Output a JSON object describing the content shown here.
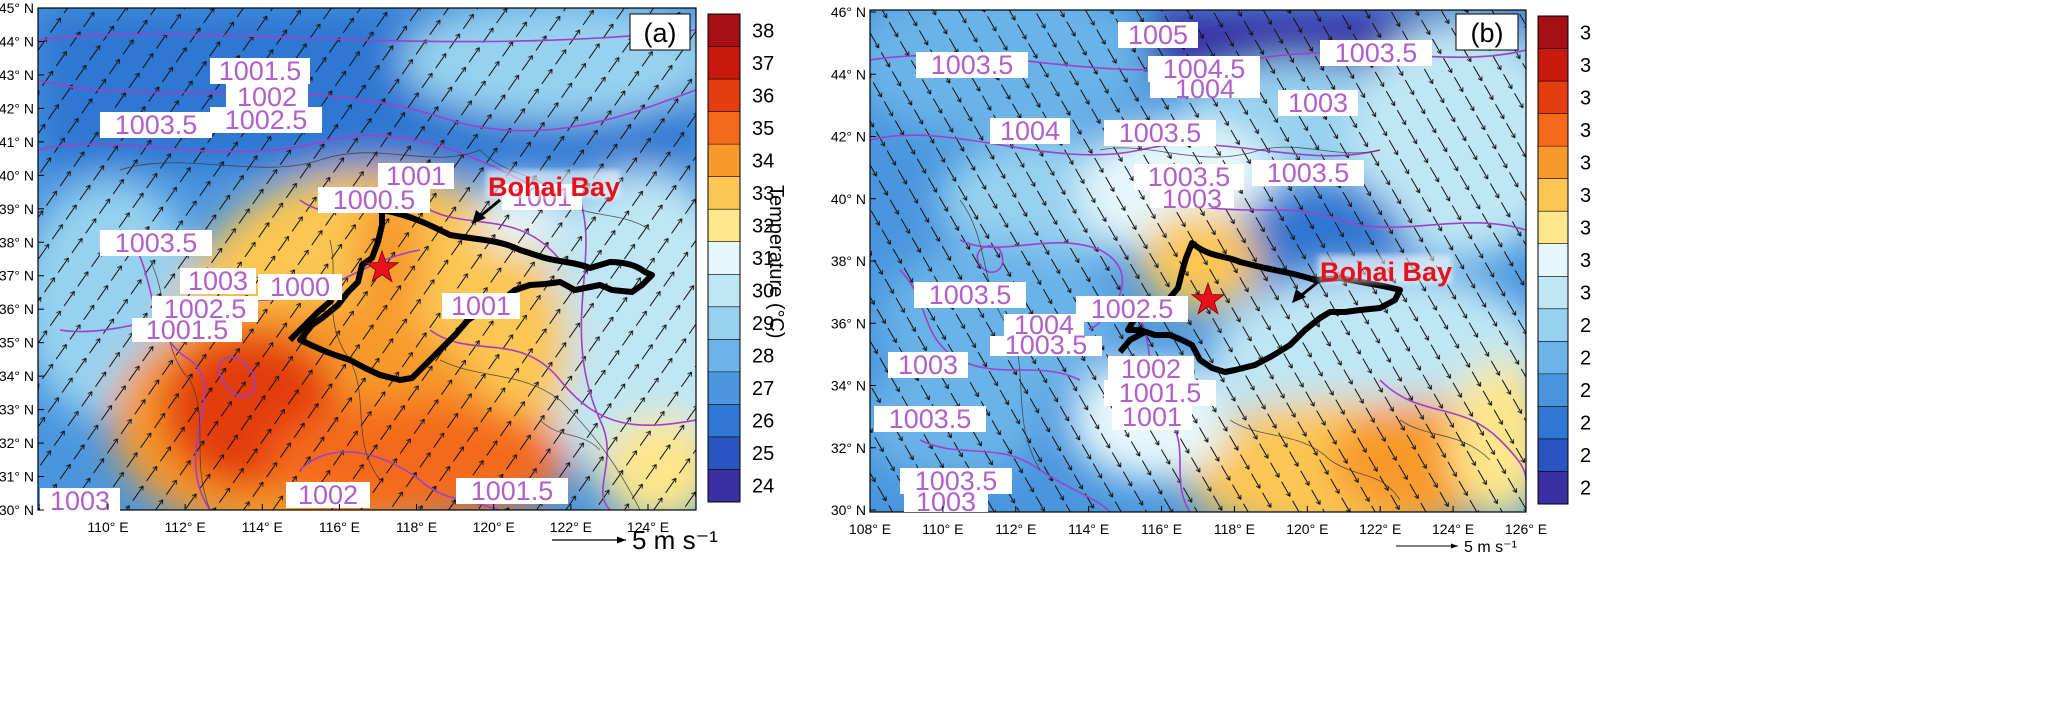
{
  "panels": [
    {
      "id": "a",
      "panel_label": "(a)",
      "x_ticks": [
        "110° E",
        "112° E",
        "114° E",
        "116° E",
        "118° E",
        "120° E",
        "122° E",
        "124° E"
      ],
      "y_ticks": [
        "30° N",
        "31° N",
        "32° N",
        "33° N",
        "34° N",
        "35° N",
        "36° N",
        "37° N",
        "38° N",
        "39° N",
        "40° N",
        "41° N",
        "42° N",
        "43° N",
        "44° N",
        "45° N"
      ],
      "colorbar_ticks": [
        "38",
        "37",
        "36",
        "35",
        "34",
        "33",
        "32",
        "31",
        "30",
        "29",
        "28",
        "27",
        "26",
        "25",
        "24"
      ],
      "colorbar_title": "Temperature (°C)",
      "annotation": "Bohai Bay",
      "scale_label": "5 m s⁻¹",
      "pressure_labels": [
        "1001.5",
        "1002",
        "1002.5",
        "1003.5",
        "1001",
        "1000.5",
        "1001",
        "1003.5",
        "1003",
        "1000",
        "1002.5",
        "1001.5",
        "1001",
        "1003",
        "1002",
        "1001.5"
      ]
    },
    {
      "id": "b",
      "panel_label": "(b)",
      "x_ticks": [
        "108° E",
        "110° E",
        "112° E",
        "114° E",
        "116° E",
        "118° E",
        "120° E",
        "122° E",
        "124° E",
        "126° E"
      ],
      "y_ticks": [
        "30° N",
        "32° N",
        "34° N",
        "36° N",
        "38° N",
        "40° N",
        "42° N",
        "44° N",
        "46° N"
      ],
      "colorbar_ticks": [
        "3",
        "3",
        "3",
        "3",
        "3",
        "3",
        "3",
        "3",
        "3",
        "2",
        "2",
        "2",
        "2",
        "2",
        "2"
      ],
      "annotation": "Bohai Bay",
      "scale_label": "5 m s⁻¹",
      "pressure_labels": [
        "1005",
        "1003.5",
        "1004.5",
        "1004",
        "1003.5",
        "1003",
        "1004",
        "1003.5",
        "1003.5",
        "1003",
        "1003.5",
        "1003.5",
        "1002.5",
        "1004",
        "1003.5",
        "1003",
        "1002",
        "1001.5",
        "1001",
        "1003.5",
        "1003.5",
        "1003"
      ]
    }
  ],
  "colors": {
    "colorbar_scale": [
      "#a50f15",
      "#c8190f",
      "#e33d10",
      "#f46a1c",
      "#f79a2b",
      "#fbc653",
      "#fde68c",
      "#e6f7fb",
      "#bfe6f4",
      "#97d1ef",
      "#6bb3e8",
      "#4a96de",
      "#2e77d2",
      "#2a55c0",
      "#3b2fa4"
    ],
    "isobar": "#a040c8",
    "label_text": "#b060c8",
    "marker": "#e8101a"
  }
}
